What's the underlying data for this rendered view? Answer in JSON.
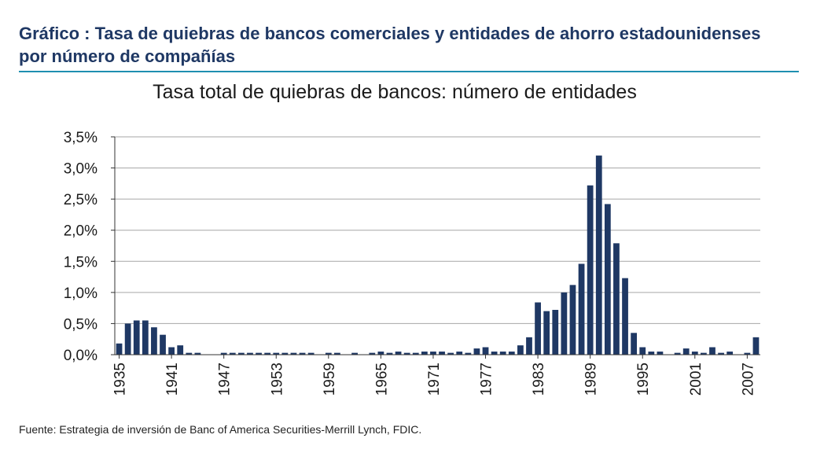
{
  "header": {
    "title_line1": "Gráfico   : Tasa de quiebras de bancos comerciales y entidades de ahorro estadounidenses",
    "title_line2": "por número de compañías"
  },
  "footer": {
    "source": "Fuente: Estrategia de inversión de Banc of America Securities-Merrill Lynch, FDIC."
  },
  "colors": {
    "bar": "#1f3864",
    "header": "#1f3864",
    "rule": "#1f8fb0",
    "grid": "#a6a6a6"
  },
  "chart_data": {
    "type": "bar",
    "title": "Tasa total de quiebras de bancos: número de entidades",
    "xlabel": "",
    "ylabel": "",
    "ylim": [
      0,
      3.5
    ],
    "yticks": [
      0,
      0.5,
      1.0,
      1.5,
      2.0,
      2.5,
      3.0,
      3.5
    ],
    "ytick_labels": [
      "0,0%",
      "0,5%",
      "1,0%",
      "1,5%",
      "2,0%",
      "2,5%",
      "3,0%",
      "3,5%"
    ],
    "xtick_labels": [
      "1935",
      "1941",
      "1947",
      "1953",
      "1959",
      "1965",
      "1971",
      "1977",
      "1983",
      "1989",
      "1995",
      "2001",
      "2007"
    ],
    "grid": true,
    "legend": "none",
    "categories": [
      1935,
      1936,
      1937,
      1938,
      1939,
      1940,
      1941,
      1942,
      1943,
      1944,
      1945,
      1946,
      1947,
      1948,
      1949,
      1950,
      1951,
      1952,
      1953,
      1954,
      1955,
      1956,
      1957,
      1958,
      1959,
      1960,
      1961,
      1962,
      1963,
      1964,
      1965,
      1966,
      1967,
      1968,
      1969,
      1970,
      1971,
      1972,
      1973,
      1974,
      1975,
      1976,
      1977,
      1978,
      1979,
      1980,
      1981,
      1982,
      1983,
      1984,
      1985,
      1986,
      1987,
      1988,
      1989,
      1990,
      1991,
      1992,
      1993,
      1994,
      1995,
      1996,
      1997,
      1998,
      1999,
      2000,
      2001,
      2002,
      2003,
      2004,
      2005,
      2006,
      2007,
      2008
    ],
    "values": [
      0.18,
      0.5,
      0.55,
      0.55,
      0.44,
      0.32,
      0.12,
      0.15,
      0.03,
      0.03,
      0.0,
      0.0,
      0.03,
      0.03,
      0.03,
      0.03,
      0.03,
      0.03,
      0.03,
      0.03,
      0.03,
      0.03,
      0.03,
      0.0,
      0.03,
      0.03,
      0.0,
      0.03,
      0.0,
      0.03,
      0.05,
      0.03,
      0.05,
      0.03,
      0.03,
      0.05,
      0.05,
      0.05,
      0.03,
      0.05,
      0.03,
      0.1,
      0.12,
      0.05,
      0.05,
      0.05,
      0.15,
      0.28,
      0.84,
      0.7,
      0.72,
      1.0,
      1.12,
      1.46,
      2.72,
      3.2,
      2.42,
      1.79,
      1.23,
      0.35,
      0.12,
      0.05,
      0.05,
      0.0,
      0.03,
      0.1,
      0.05,
      0.03,
      0.12,
      0.03,
      0.05,
      0.0,
      0.03,
      0.28
    ]
  }
}
